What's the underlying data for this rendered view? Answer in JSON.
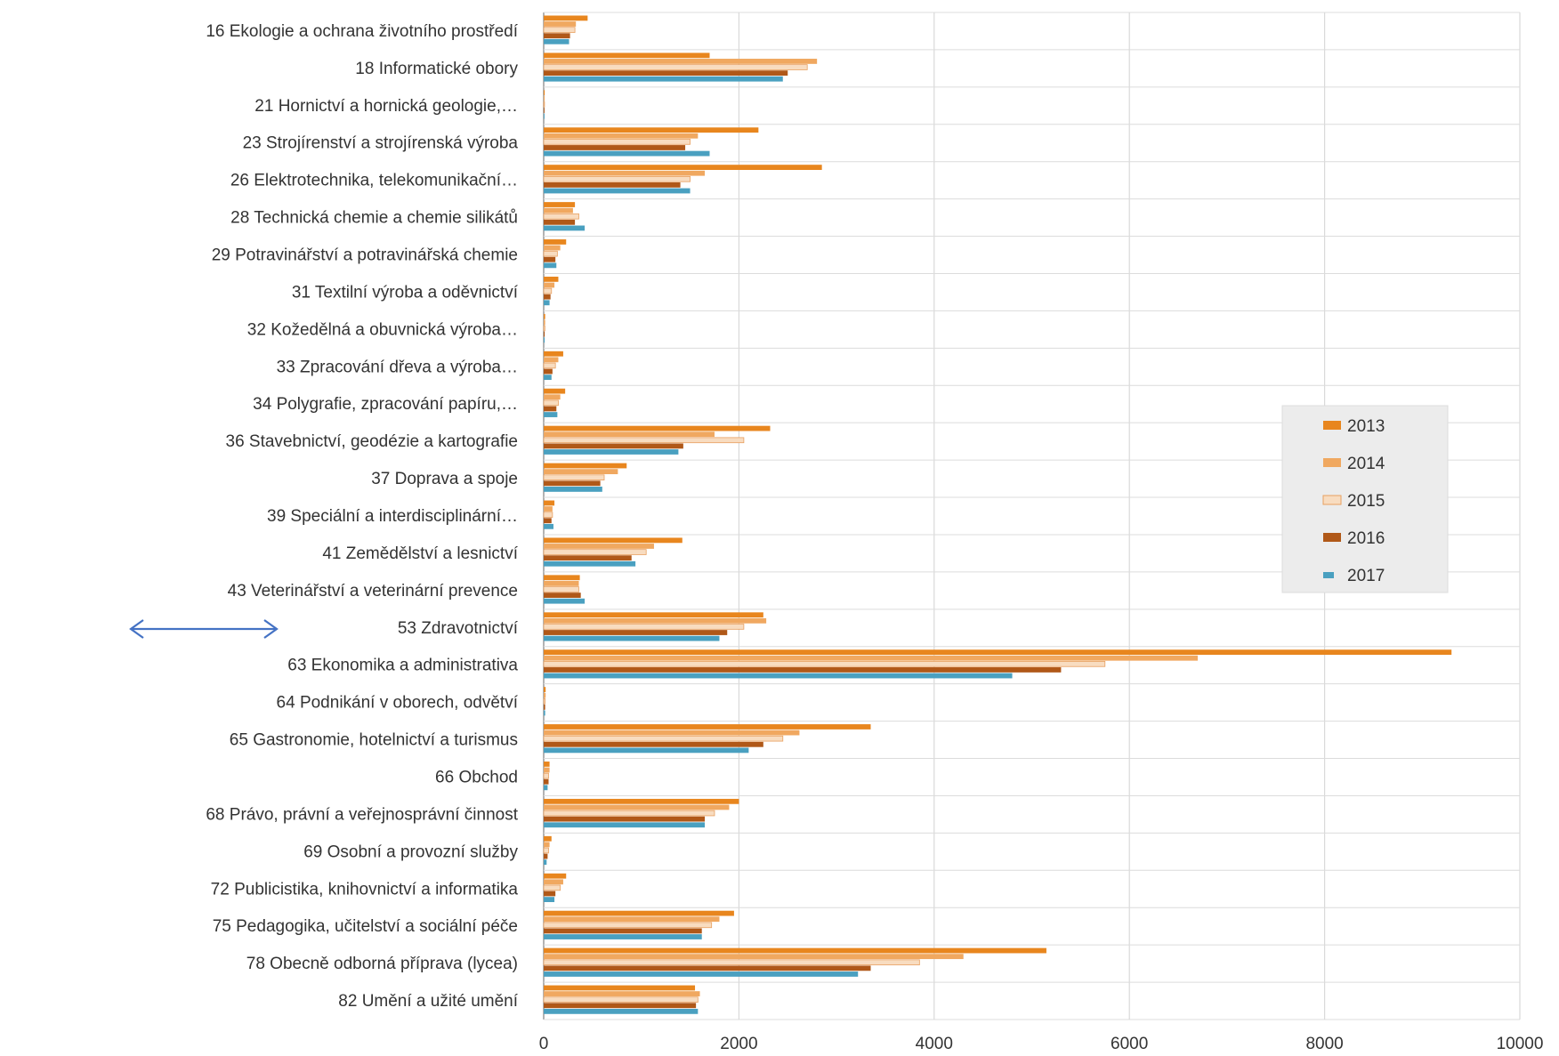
{
  "chart_data": {
    "type": "bar",
    "orientation": "horizontal",
    "categories": [
      "16 Ekologie a ochrana životního prostředí",
      "18 Informatické obory",
      "21 Hornictví a hornická geologie,…",
      "23 Strojírenství a strojírenská výroba",
      "26 Elektrotechnika, telekomunikační…",
      "28 Technická chemie a chemie silikátů",
      "29 Potravinářství a potravinářská chemie",
      "31 Textilní výroba a oděvnictví",
      "32 Kožedělná a obuvnická výroba…",
      "33 Zpracování dřeva a výroba…",
      "34 Polygrafie, zpracování papíru,…",
      "36 Stavebnictví, geodézie a kartografie",
      "37 Doprava a spoje",
      "39 Speciální a interdisciplinární…",
      "41 Zemědělství a lesnictví",
      "43 Veterinářství a veterinární prevence",
      "53 Zdravotnictví",
      "63 Ekonomika a administrativa",
      "64 Podnikání v oborech, odvětví",
      "65 Gastronomie, hotelnictví a turismus",
      "66 Obchod",
      "68 Právo, právní a veřejnosprávní činnost",
      "69 Osobní a provozní služby",
      "72 Publicistika, knihovnictví a informatika",
      "75 Pedagogika, učitelství a sociální péče",
      "78 Obecně odborná příprava (lycea)",
      "82 Umění a užité umění"
    ],
    "series": [
      {
        "name": "2013",
        "color": "#e8861e",
        "values": [
          450,
          1700,
          10,
          2200,
          2850,
          320,
          230,
          150,
          15,
          200,
          220,
          2320,
          850,
          110,
          1420,
          370,
          2250,
          9300,
          20,
          3350,
          60,
          2000,
          80,
          230,
          1950,
          5150,
          1550
        ]
      },
      {
        "name": "2014",
        "color": "#f0a860",
        "values": [
          330,
          2800,
          10,
          1580,
          1650,
          300,
          170,
          110,
          15,
          150,
          170,
          1750,
          760,
          90,
          1130,
          360,
          2280,
          6700,
          20,
          2620,
          60,
          1900,
          60,
          200,
          1800,
          4300,
          1600
        ]
      },
      {
        "name": "2015",
        "color": "#f8dcc0",
        "values": [
          320,
          2700,
          8,
          1500,
          1500,
          360,
          140,
          80,
          12,
          120,
          150,
          2050,
          620,
          90,
          1050,
          360,
          2050,
          5750,
          15,
          2450,
          50,
          1750,
          50,
          170,
          1720,
          3850,
          1580
        ]
      },
      {
        "name": "2016",
        "color": "#b05818",
        "values": [
          270,
          2500,
          8,
          1450,
          1400,
          320,
          120,
          70,
          10,
          90,
          130,
          1430,
          580,
          80,
          900,
          380,
          1880,
          5300,
          15,
          2250,
          50,
          1650,
          40,
          120,
          1620,
          3350,
          1560
        ]
      },
      {
        "name": "2017",
        "color": "#4aa0c0",
        "values": [
          260,
          2450,
          8,
          1700,
          1500,
          420,
          130,
          60,
          10,
          80,
          140,
          1380,
          600,
          100,
          940,
          420,
          1800,
          4800,
          15,
          2100,
          40,
          1650,
          30,
          110,
          1620,
          3220,
          1580
        ]
      }
    ],
    "xlim": [
      0,
      10000
    ],
    "x_ticks": [
      0,
      2000,
      4000,
      6000,
      8000,
      10000
    ],
    "grid": true,
    "legend_position": "right",
    "title": "",
    "xlabel": "",
    "ylabel": ""
  },
  "annotation": {
    "type": "double-arrow",
    "color": "#4472c4"
  }
}
